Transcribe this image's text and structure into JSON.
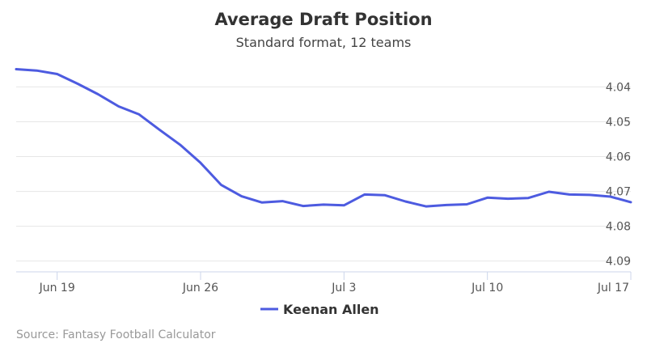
{
  "chart_data": {
    "type": "line",
    "title": "Average Draft Position",
    "subtitle": "Standard format, 12 teams",
    "xlabel": "",
    "ylabel": "",
    "x_ticks": [
      "Jun 19",
      "Jun 26",
      "Jul 3",
      "Jul 10",
      "Jul 17"
    ],
    "y_ticks": [
      "4.04",
      "4.05",
      "4.06",
      "4.07",
      "4.08",
      "4.09"
    ],
    "y_tick_values": [
      4.04,
      4.05,
      4.06,
      4.07,
      4.08,
      4.09
    ],
    "y_reversed": true,
    "ylim": [
      4.0327,
      4.0931
    ],
    "xlim": [
      "Jun 17",
      "Jul 17"
    ],
    "grid": {
      "y": true,
      "x": false
    },
    "legend": {
      "position": "bottom-center"
    },
    "series": [
      {
        "name": "Keenan Allen",
        "color": "#4d5be0",
        "x": [
          "Jun 17",
          "Jun 18",
          "Jun 19",
          "Jun 20",
          "Jun 21",
          "Jun 22",
          "Jun 23",
          "Jun 24",
          "Jun 25",
          "Jun 26",
          "Jun 27",
          "Jun 28",
          "Jun 29",
          "Jun 30",
          "Jul 1",
          "Jul 2",
          "Jul 3",
          "Jul 4",
          "Jul 5",
          "Jul 6",
          "Jul 7",
          "Jul 8",
          "Jul 9",
          "Jul 10",
          "Jul 11",
          "Jul 12",
          "Jul 13",
          "Jul 14",
          "Jul 15",
          "Jul 16",
          "Jul 17"
        ],
        "values": [
          4.0349,
          4.0353,
          4.0363,
          4.0391,
          4.0421,
          4.0456,
          4.0479,
          4.0523,
          4.0566,
          4.0618,
          4.0681,
          4.0714,
          4.0732,
          4.0728,
          4.0742,
          4.0738,
          4.074,
          4.0709,
          4.0711,
          4.0729,
          4.0743,
          4.0739,
          4.0737,
          4.0718,
          4.0721,
          4.0719,
          4.0701,
          4.0709,
          4.071,
          4.0715,
          4.0731
        ]
      }
    ]
  },
  "credits": "Source: Fantasy Football Calculator"
}
